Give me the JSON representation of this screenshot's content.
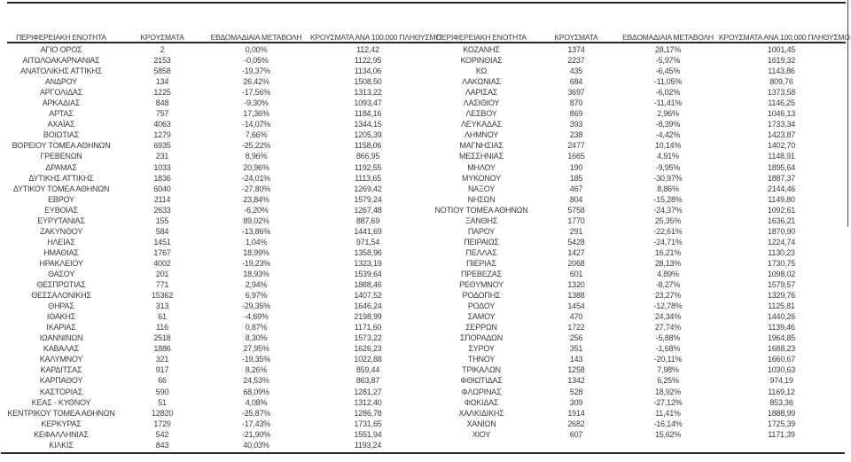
{
  "colors": {
    "text": "#3b3b3b",
    "rule": "#262626",
    "background": "#ffffff"
  },
  "table": {
    "headers": [
      "ΠΕΡΙΦΕΡΕΙΑΚΗ ΕΝΟΤΗΤΑ",
      "ΚΡΟΥΣΜΑΤΑ",
      "ΕΒΔΟΜΑΔΙΑΙΑ ΜΕΤΑΒΟΛΗ",
      "ΚΡΟΥΣΜΑΤΑ ΑΝΑ 100.000 ΠΛΗΘΥΣΜΟ"
    ],
    "left_rows": [
      [
        "ΑΓΙΟ ΟΡΟΣ",
        "2",
        "0,00%",
        "112,42"
      ],
      [
        "ΑΙΤΩΛΟΑΚΑΡΝΑΝΙΑΣ",
        "2153",
        "-0,05%",
        "1122,95"
      ],
      [
        "ΑΝΑΤΟΛΙΚΗΣ ΑΤΤΙΚΗΣ",
        "5858",
        "-19,37%",
        "1134,06"
      ],
      [
        "ΑΝΔΡΟΥ",
        "134",
        "26,42%",
        "1508,50"
      ],
      [
        "ΑΡΓΟΛΙΔΑΣ",
        "1225",
        "-17,56%",
        "1313,22"
      ],
      [
        "ΑΡΚΑΔΙΑΣ",
        "848",
        "-9,30%",
        "1093,47"
      ],
      [
        "ΑΡΤΑΣ",
        "757",
        "17,36%",
        "1184,16"
      ],
      [
        "ΑΧΑΪΑΣ",
        "4063",
        "-14,07%",
        "1344,15"
      ],
      [
        "ΒΟΙΩΤΙΑΣ",
        "1279",
        "7,66%",
        "1205,39"
      ],
      [
        "ΒΟΡΕΙΟΥ ΤΟΜΕΑ ΑΘΗΝΩΝ",
        "6935",
        "-25,22%",
        "1158,06"
      ],
      [
        "ΓΡΕΒΕΝΩΝ",
        "231",
        "8,96%",
        "866,95"
      ],
      [
        "ΔΡΑΜΑΣ",
        "1033",
        "20,96%",
        "1192,55"
      ],
      [
        "ΔΥΤΙΚΗΣ ΑΤΤΙΚΗΣ",
        "1836",
        "-24,01%",
        "1113,65"
      ],
      [
        "ΔΥΤΙΚΟΥ ΤΟΜΕΑ ΑΘΗΝΩΝ",
        "6040",
        "-27,80%",
        "1269,42"
      ],
      [
        "ΕΒΡΟΥ",
        "2114",
        "23,84%",
        "1579,24"
      ],
      [
        "ΕΥΒΟΙΑΣ",
        "2633",
        "-6,20%",
        "1267,48"
      ],
      [
        "ΕΥΡΥΤΑΝΙΑΣ",
        "155",
        "89,02%",
        "887,69"
      ],
      [
        "ΖΑΚΥΝΘΟΥ",
        "584",
        "-13,86%",
        "1441,69"
      ],
      [
        "ΗΛΕΙΑΣ",
        "1451",
        "1,04%",
        "971,54"
      ],
      [
        "ΗΜΑΘΙΑΣ",
        "1767",
        "18,99%",
        "1358,96"
      ],
      [
        "ΗΡΑΚΛΕΙΟΥ",
        "4002",
        "-19,23%",
        "1323,19"
      ],
      [
        "ΘΑΣΟΥ",
        "201",
        "18,93%",
        "1539,64"
      ],
      [
        "ΘΕΣΠΡΩΤΙΑΣ",
        "771",
        "2,94%",
        "1888,46"
      ],
      [
        "ΘΕΣΣΑΛΟΝΙΚΗΣ",
        "15362",
        "6,97%",
        "1407,52"
      ],
      [
        "ΘΗΡΑΣ",
        "313",
        "-29,35%",
        "1646,24"
      ],
      [
        "ΙΘΑΚΗΣ",
        "61",
        "-4,69%",
        "2198,99"
      ],
      [
        "ΙΚΑΡΙΑΣ",
        "116",
        "0,87%",
        "1171,60"
      ],
      [
        "ΙΩΑΝΝΙΝΩΝ",
        "2518",
        "8,30%",
        "1573,22"
      ],
      [
        "ΚΑΒΑΛΑΣ",
        "1886",
        "27,95%",
        "1626,23"
      ],
      [
        "ΚΑΛΥΜΝΟΥ",
        "321",
        "-19,35%",
        "1022,88"
      ],
      [
        "ΚΑΡΔΙΤΣΑΣ",
        "917",
        "8,26%",
        "859,44"
      ],
      [
        "ΚΑΡΠΑΘΟΥ",
        "66",
        "24,53%",
        "863,87"
      ],
      [
        "ΚΑΣΤΟΡΙΑΣ",
        "590",
        "68,09%",
        "1281,27"
      ],
      [
        "ΚΕΑΣ - ΚΥΘΝΟΥ",
        "51",
        "4,08%",
        "1312,40"
      ],
      [
        "ΚΕΝΤΡΙΚΟΥ ΤΟΜΕΑ ΑΘΗΝΩΝ",
        "12820",
        "-25,87%",
        "1286,78"
      ],
      [
        "ΚΕΡΚΥΡΑΣ",
        "1729",
        "-17,43%",
        "1731,65"
      ],
      [
        "ΚΕΦΑΛΛΗΝΙΑΣ",
        "542",
        "-21,90%",
        "1551,94"
      ],
      [
        "ΚΙΛΚΙΣ",
        "843",
        "40,03%",
        "1193,24"
      ]
    ],
    "right_rows": [
      [
        "ΚΟΖΑΝΗΣ",
        "1374",
        "28,17%",
        "1001,45"
      ],
      [
        "ΚΟΡΙΝΘΙΑΣ",
        "2237",
        "-5,97%",
        "1619,32"
      ],
      [
        "ΚΩ",
        "435",
        "-6,45%",
        "1143,86"
      ],
      [
        "ΛΑΚΩΝΙΑΣ",
        "684",
        "-11,05%",
        "809,76"
      ],
      [
        "ΛΑΡΙΣΑΣ",
        "3697",
        "-6,02%",
        "1373,58"
      ],
      [
        "ΛΑΣΙΘΙΟΥ",
        "870",
        "-11,41%",
        "1146,25"
      ],
      [
        "ΛΕΣΒΟΥ",
        "869",
        "2,96%",
        "1046,13"
      ],
      [
        "ΛΕΥΚΑΔΑΣ",
        "393",
        "-8,39%",
        "1733,34"
      ],
      [
        "ΛΗΜΝΟΥ",
        "238",
        "-4,42%",
        "1423,87"
      ],
      [
        "ΜΑΓΝΗΣΙΑΣ",
        "2477",
        "10,14%",
        "1402,70"
      ],
      [
        "ΜΕΣΣΗΝΙΑΣ",
        "1665",
        "4,91%",
        "1148,91"
      ],
      [
        "ΜΗΛΟΥ",
        "190",
        "-9,95%",
        "1895,64"
      ],
      [
        "ΜΥΚΟΝΟΥ",
        "185",
        "-30,97%",
        "1887,37"
      ],
      [
        "ΝΑΞΟΥ",
        "467",
        "8,86%",
        "2144,46"
      ],
      [
        "ΝΗΣΩΝ",
        "804",
        "-15,28%",
        "1149,80"
      ],
      [
        "ΝΟΤΙΟΥ ΤΟΜΕΑ ΑΘΗΝΩΝ",
        "5758",
        "-24,37%",
        "1092,61"
      ],
      [
        "ΞΑΝΘΗΣ",
        "1770",
        "25,35%",
        "1636,21"
      ],
      [
        "ΠΑΡΟΥ",
        "291",
        "-22,61%",
        "1870,90"
      ],
      [
        "ΠΕΙΡΑΙΩΣ",
        "5428",
        "-24,71%",
        "1224,74"
      ],
      [
        "ΠΕΛΛΑΣ",
        "1427",
        "16,21%",
        "1130,23"
      ],
      [
        "ΠΙΕΡΙΑΣ",
        "2068",
        "28,13%",
        "1730,75"
      ],
      [
        "ΠΡΕΒΕΖΑΣ",
        "601",
        "4,89%",
        "1098,02"
      ],
      [
        "ΡΕΘΥΜΝΟΥ",
        "1320",
        "-8,27%",
        "1579,57"
      ],
      [
        "ΡΟΔΟΠΗΣ",
        "1388",
        "23,27%",
        "1329,76"
      ],
      [
        "ΡΟΔΟΥ",
        "1454",
        "-12,78%",
        "1125,81"
      ],
      [
        "ΣΑΜΟΥ",
        "470",
        "24,34%",
        "1440,26"
      ],
      [
        "ΣΕΡΡΩΝ",
        "1722",
        "27,74%",
        "1139,46"
      ],
      [
        "ΣΠΟΡΑΔΩΝ",
        "256",
        "-5,88%",
        "1964,85"
      ],
      [
        "ΣΥΡΟΥ",
        "351",
        "-1,68%",
        "1688,23"
      ],
      [
        "ΤΗΝΟΥ",
        "143",
        "-20,11%",
        "1660,67"
      ],
      [
        "ΤΡΙΚΑΛΩΝ",
        "1258",
        "7,98%",
        "1030,63"
      ],
      [
        "ΦΘΙΩΤΙΔΑΣ",
        "1342",
        "6,25%",
        "974,19"
      ],
      [
        "ΦΛΩΡΙΝΑΣ",
        "528",
        "18,92%",
        "1169,12"
      ],
      [
        "ΦΩΚΙΔΑΣ",
        "309",
        "-27,12%",
        "853,36"
      ],
      [
        "ΧΑΛΚΙΔΙΚΗΣ",
        "1914",
        "11,41%",
        "1888,99"
      ],
      [
        "ΧΑΝΙΩΝ",
        "2682",
        "-16,14%",
        "1725,39"
      ],
      [
        "ΧΙΟΥ",
        "607",
        "15,62%",
        "1171,39"
      ]
    ]
  }
}
